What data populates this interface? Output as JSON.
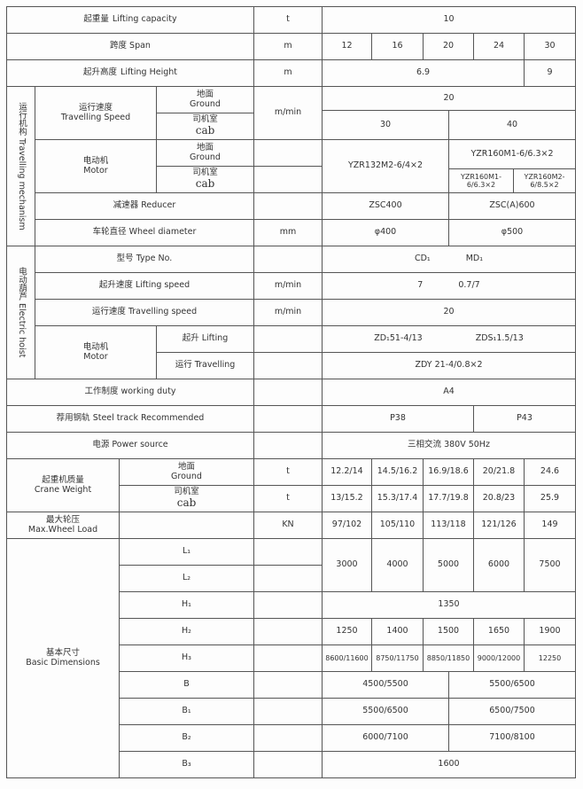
{
  "lifting_capacity": {
    "zh": "起重量",
    "en": "Lifting capacity",
    "unit": "t",
    "value": "10"
  },
  "span": {
    "zh": "跨度",
    "en": "Span",
    "unit": "m",
    "values": [
      "12",
      "16",
      "20",
      "24",
      "30"
    ]
  },
  "lifting_height": {
    "zh": "起升高度",
    "en": "Lifting Height",
    "unit": "m",
    "values": [
      "6.9",
      "9"
    ]
  },
  "travelling_mechanism": {
    "label": "运行机构 Travelling mechanism",
    "speed": {
      "zh": "运行速度",
      "en": "Travelling Speed",
      "unit": "m/min",
      "ground": "20",
      "cab": [
        "30",
        "40"
      ]
    },
    "motor": {
      "zh": "电动机",
      "en": "Motor",
      "ground_cab_shared": "YZR132M2-6/4×2",
      "ground": "YZR160M1-6/6.3×2",
      "cab": [
        "YZR160M1-6/6.3×2",
        "YZR160M2-6/8.5×2"
      ]
    },
    "reducer": {
      "label": "减速器 Reducer",
      "values": [
        "ZSC400",
        "ZSC(A)600"
      ]
    },
    "wheel": {
      "label": "车轮直径 Wheel diameter",
      "unit": "mm",
      "values": [
        "φ400",
        "φ500"
      ]
    }
  },
  "sub": {
    "ground_zh": "地面",
    "ground_en": "Ground",
    "cab_zh": "司机室",
    "cab_en": "cab"
  },
  "electric_hoist": {
    "label": "电动葫芦 Electric hoist",
    "type": {
      "label": "型号 Type No.",
      "values": [
        "CD₁",
        "MD₁"
      ]
    },
    "lifting_speed": {
      "label": "起升速度 Lifting speed",
      "unit": "m/min",
      "values": [
        "7",
        "0.7/7"
      ]
    },
    "travelling_speed": {
      "label": "运行速度 Travelling speed",
      "unit": "m/min",
      "value": "20"
    },
    "motor": {
      "zh": "电动机",
      "en": "Motor",
      "lifting_label": "起升 Lifting",
      "lifting": [
        "ZD₁51-4/13",
        "ZDS₁1.5/13"
      ],
      "travelling_label": "运行 Travelling",
      "travelling": "ZDY 21-4/0.8×2"
    }
  },
  "working_duty": {
    "label": "工作制度 working duty",
    "value": "A4"
  },
  "steel_track": {
    "label": "荐用钢轨 Steel track Recommended",
    "values": [
      "P38",
      "P43"
    ]
  },
  "power": {
    "label": "电源 Power source",
    "value": "三相交流 380V 50Hz"
  },
  "crane_weight": {
    "zh": "起重机质量",
    "en": "Crane Weight",
    "unit": "t",
    "ground": [
      "12.2/14",
      "14.5/16.2",
      "16.9/18.6",
      "20/21.8",
      "24.6"
    ],
    "cab": [
      "13/15.2",
      "15.3/17.4",
      "17.7/19.8",
      "20.8/23",
      "25.9"
    ]
  },
  "max_wheel_load": {
    "zh": "最大轮压",
    "en": "Max.Wheel Load",
    "unit": "KN",
    "values": [
      "97/102",
      "105/110",
      "113/118",
      "121/126",
      "149"
    ]
  },
  "basic_dimensions": {
    "zh": "基本尺寸",
    "en": "Basic Dimensions",
    "labels": {
      "L1": "L₁",
      "L2": "L₂",
      "H1": "H₁",
      "H2": "H₂",
      "H3": "H₃",
      "B": "B",
      "B1": "B₁",
      "B2": "B₂",
      "B3": "B₃"
    },
    "L": [
      "3000",
      "4000",
      "5000",
      "6000",
      "7500"
    ],
    "H1": "1350",
    "H2": [
      "1250",
      "1400",
      "1500",
      "1650",
      "1900"
    ],
    "H3": [
      "8600/11600",
      "8750/11750",
      "8850/11850",
      "9000/12000",
      "12250"
    ],
    "B": [
      "4500/5500",
      "5500/6500"
    ],
    "B1": [
      "5500/6500",
      "6500/7500"
    ],
    "B2": [
      "6000/7100",
      "7100/8100"
    ],
    "B3": "1600"
  }
}
